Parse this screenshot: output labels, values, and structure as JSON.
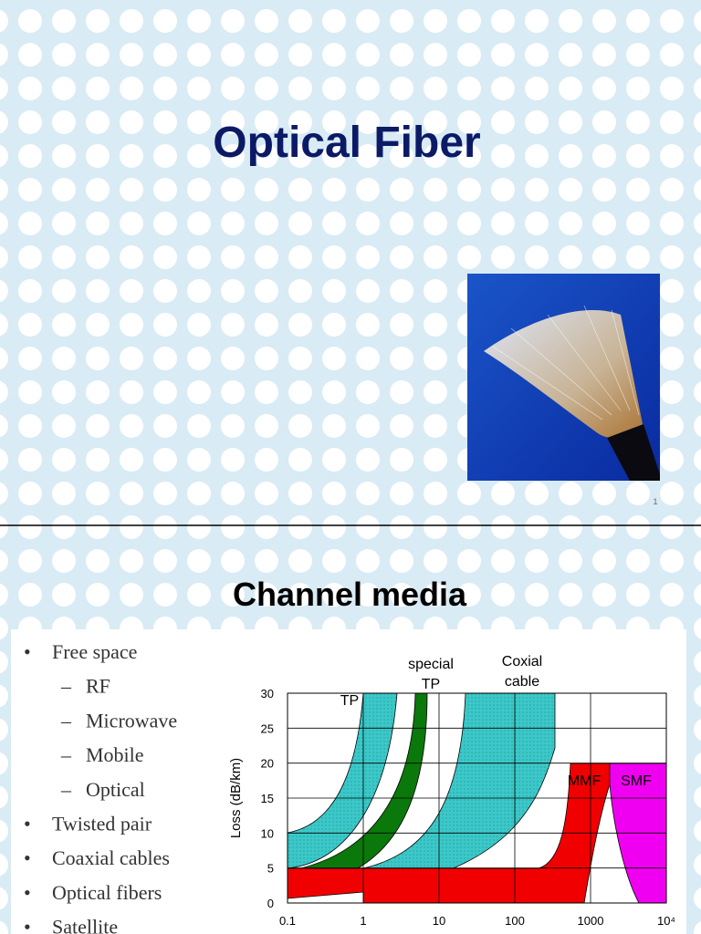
{
  "slides": [
    {
      "title": "Optical Fiber",
      "number": "1"
    },
    {
      "title": "Channel media",
      "bullets": [
        {
          "text": "Free space",
          "items": [
            "RF",
            "Microwave",
            "Mobile",
            "Optical"
          ]
        },
        {
          "text": "Twisted pair"
        },
        {
          "text": "Coaxial cables"
        },
        {
          "text": "Optical fibers"
        },
        {
          "text": "Satellite"
        }
      ],
      "chart": {
        "type": "area",
        "y_label": "Loss (dB/km)",
        "log_x": true,
        "grid": true,
        "xlim": [
          0.1,
          10000
        ],
        "ylim": [
          0,
          30
        ],
        "xticks": [
          0.1,
          1,
          10,
          100,
          1000,
          {
            "value": 10000,
            "label": "10⁴"
          }
        ],
        "yticks": [
          0,
          5,
          10,
          15,
          20,
          25,
          30
        ],
        "bands": [
          {
            "name": [
              "TP"
            ],
            "color": "#3cc8c8"
          },
          {
            "name": [
              "special",
              "TP"
            ],
            "color": "#0a780a"
          },
          {
            "name": [
              "Coxial",
              "cable"
            ],
            "color": "#3cc8c8"
          },
          {
            "name": [
              "MMF"
            ],
            "color": "#f00000"
          },
          {
            "name": [
              "SMF"
            ],
            "color": "#f000f0"
          }
        ]
      }
    }
  ]
}
